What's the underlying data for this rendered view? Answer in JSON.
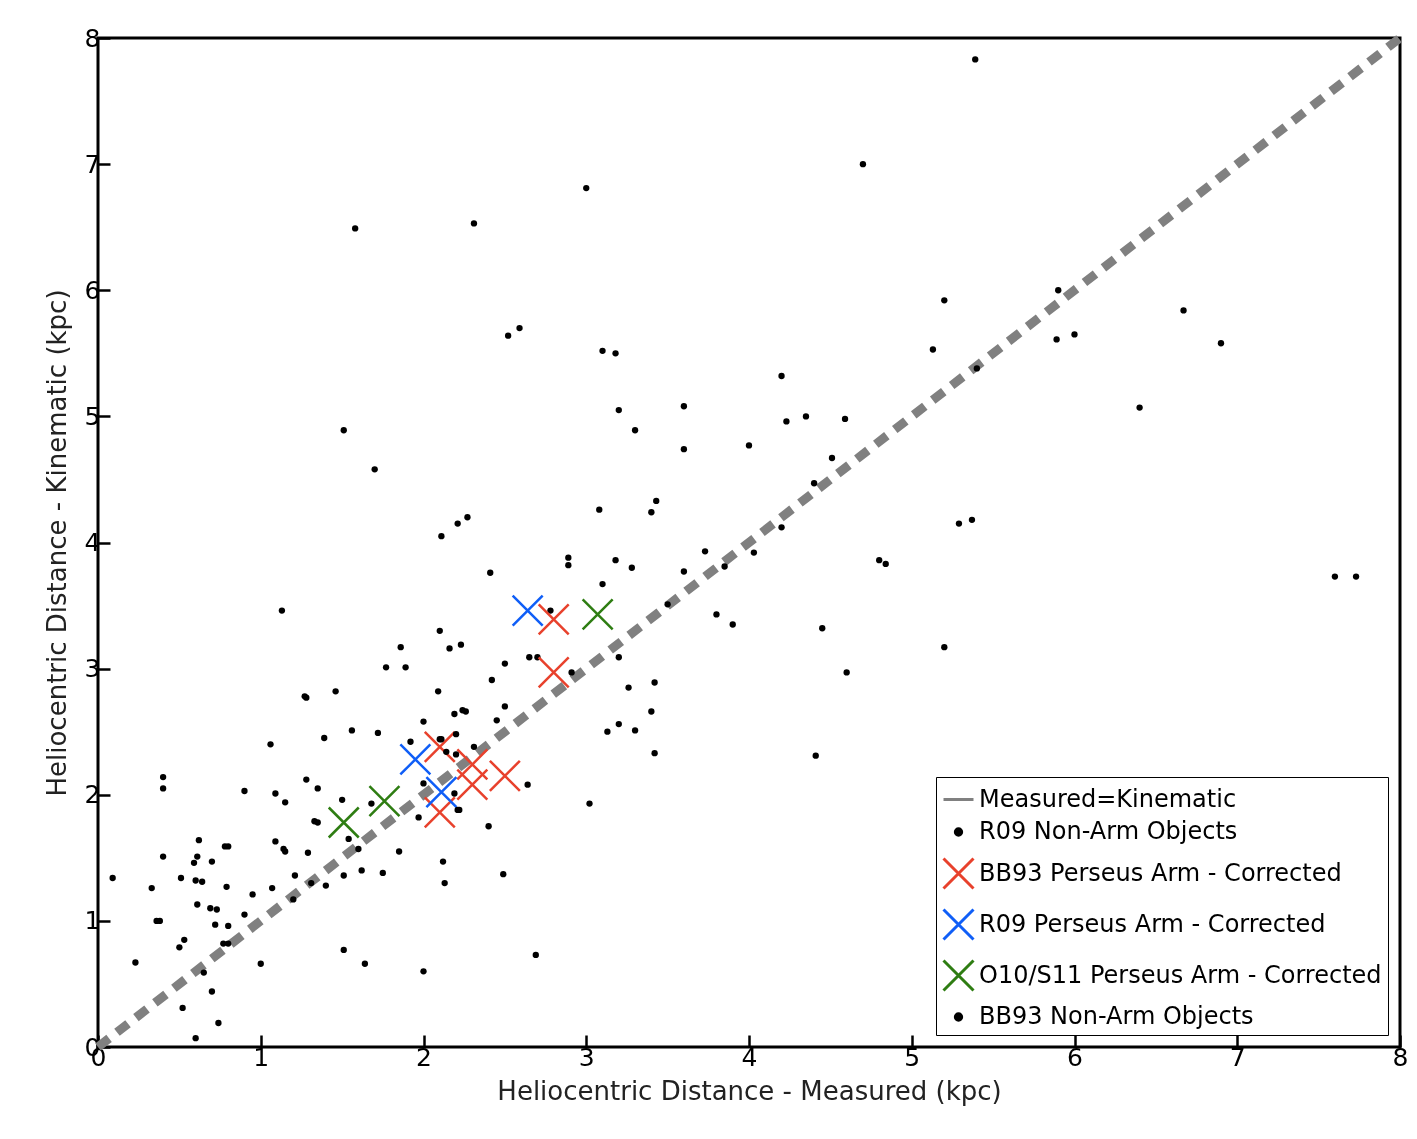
{
  "chart_data": {
    "type": "scatter",
    "xlabel": "Heliocentric Distance - Measured (kpc)",
    "ylabel": "Heliocentric Distance - Kinematic (kpc)",
    "xlim": [
      0,
      8
    ],
    "ylim": [
      0,
      8
    ],
    "xticks": [
      0,
      1,
      2,
      3,
      4,
      5,
      6,
      7,
      8
    ],
    "yticks": [
      0,
      1,
      2,
      3,
      4,
      5,
      6,
      7,
      8
    ],
    "grid": false,
    "legend": "bottom right",
    "series": [
      {
        "name": "Measured=Kinematic",
        "type": "line",
        "line_style": "dashed",
        "marker": "none",
        "color": "#808080",
        "x": [
          0,
          8
        ],
        "values": [
          0,
          8
        ]
      },
      {
        "name": "R09 Non-Arm Objects",
        "marker": "circle",
        "color": "#000000",
        "x": [
          5.39,
          4.7,
          3.0,
          2.31,
          1.58,
          2.59,
          2.52,
          3.1,
          3.18,
          1.51,
          1.7,
          3.2,
          3.3,
          3.6,
          3.6,
          4.0,
          3.08,
          3.43,
          3.4,
          2.11,
          2.21,
          2.27,
          2.41,
          2.89,
          2.89,
          3.18,
          3.28,
          3.73,
          4.03,
          4.2,
          3.6,
          3.85,
          3.5,
          3.1,
          3.8,
          3.9,
          2.78,
          2.1,
          2.16,
          2.23,
          1.86,
          1.77,
          1.89,
          2.65,
          2.7,
          2.5,
          3.2,
          2.91,
          3.26,
          3.42,
          3.4,
          3.13,
          3.2,
          3.3,
          3.42,
          2.42,
          3.02,
          5.2,
          5.13,
          5.4,
          4.2,
          4.23,
          4.35,
          4.59,
          4.51,
          4.4,
          5.29,
          5.37,
          5.9,
          6.67,
          6.9,
          5.89,
          6.0,
          6.4,
          7.6,
          7.73,
          4.8,
          4.84,
          4.45,
          4.6,
          5.2,
          4.41,
          2.69,
          2.49,
          2.64,
          2.5,
          2.45
        ],
        "values": [
          7.83,
          7.0,
          6.81,
          6.53,
          6.49,
          5.7,
          5.64,
          5.52,
          5.5,
          4.89,
          4.58,
          5.05,
          4.89,
          5.08,
          4.74,
          4.77,
          4.26,
          4.33,
          4.24,
          4.05,
          4.15,
          4.2,
          3.76,
          3.88,
          3.82,
          3.86,
          3.8,
          3.93,
          3.92,
          4.12,
          3.77,
          3.81,
          3.51,
          3.67,
          3.43,
          3.35,
          3.46,
          3.3,
          3.16,
          3.19,
          3.17,
          3.01,
          3.01,
          3.09,
          3.09,
          3.04,
          3.09,
          2.97,
          2.85,
          2.89,
          2.66,
          2.5,
          2.56,
          2.51,
          2.33,
          2.91,
          1.93,
          5.92,
          5.53,
          5.38,
          5.32,
          4.96,
          5.0,
          4.98,
          4.67,
          4.47,
          4.15,
          4.18,
          6.0,
          5.84,
          5.58,
          5.61,
          5.65,
          5.07,
          3.73,
          3.73,
          3.86,
          3.83,
          3.32,
          2.97,
          3.17,
          2.31,
          0.73,
          1.37,
          2.08,
          2.7,
          2.59
        ]
      },
      {
        "name": "BB93 Perseus Arm - Corrected",
        "marker": "cross",
        "color": "#e8412c",
        "x": [
          2.8,
          2.8,
          2.1,
          2.3,
          2.3,
          2.5,
          2.1
        ],
        "values": [
          3.39,
          2.97,
          2.38,
          2.24,
          2.08,
          2.15,
          1.86
        ]
      },
      {
        "name": "R09 Perseus Arm - Corrected",
        "marker": "cross",
        "color": "#0f5ef7",
        "x": [
          2.64,
          1.95,
          2.11
        ],
        "values": [
          3.46,
          2.28,
          2.02
        ]
      },
      {
        "name": "O10/S11 Perseus Arm - Corrected",
        "marker": "cross",
        "color": "#2e7d12",
        "x": [
          3.07,
          1.51,
          1.76
        ],
        "values": [
          3.43,
          1.78,
          1.95
        ]
      },
      {
        "name": "BB93 Non-Arm Objects",
        "marker": "circle",
        "color": "#000000",
        "x": [
          0.09,
          0.23,
          0.33,
          0.36,
          0.38,
          0.4,
          0.4,
          0.4,
          0.5,
          0.53,
          0.51,
          0.52,
          0.6,
          0.59,
          0.61,
          0.62,
          0.6,
          0.64,
          0.61,
          0.65,
          0.7,
          0.69,
          0.73,
          0.7,
          0.72,
          0.74,
          0.78,
          0.8,
          0.79,
          0.8,
          0.77,
          0.8,
          0.9,
          0.9,
          0.95,
          1.0,
          1.06,
          1.07,
          1.09,
          1.09,
          1.15,
          1.14,
          1.15,
          1.2,
          1.21,
          1.28,
          1.28,
          1.29,
          1.31,
          1.35,
          1.35,
          1.39,
          1.4,
          1.46,
          1.27,
          1.5,
          1.51,
          1.51,
          1.54,
          1.56,
          1.6,
          1.62,
          1.64,
          1.68,
          1.72,
          1.75,
          1.85,
          1.92,
          1.97,
          2.0,
          2.0,
          2.0,
          2.09,
          2.1,
          2.11,
          2.12,
          2.19,
          2.24,
          2.26,
          2.2,
          2.14,
          2.2,
          2.31,
          2.19,
          2.22,
          2.21,
          2.4,
          1.13,
          1.33,
          2.13
        ],
        "values": [
          1.34,
          0.67,
          1.26,
          1.0,
          1.0,
          1.51,
          2.14,
          2.05,
          0.79,
          0.85,
          1.34,
          0.31,
          0.07,
          1.46,
          1.51,
          1.64,
          1.32,
          1.31,
          1.13,
          0.59,
          1.47,
          1.1,
          1.09,
          0.44,
          0.97,
          0.19,
          1.59,
          1.59,
          1.27,
          0.96,
          0.82,
          0.82,
          2.03,
          1.05,
          1.21,
          0.66,
          2.4,
          1.26,
          2.01,
          1.63,
          1.94,
          1.57,
          1.55,
          1.17,
          1.36,
          2.77,
          2.12,
          1.54,
          1.3,
          2.05,
          1.78,
          2.45,
          1.28,
          2.82,
          2.78,
          1.96,
          1.36,
          0.77,
          1.65,
          2.51,
          1.57,
          1.4,
          0.66,
          1.93,
          2.49,
          1.38,
          1.55,
          2.42,
          1.82,
          2.58,
          2.09,
          0.6,
          2.82,
          2.44,
          2.44,
          1.47,
          2.64,
          2.67,
          2.66,
          2.48,
          2.34,
          2.32,
          2.38,
          2.01,
          1.88,
          1.88,
          1.75,
          3.46,
          1.79,
          1.3
        ]
      }
    ]
  }
}
